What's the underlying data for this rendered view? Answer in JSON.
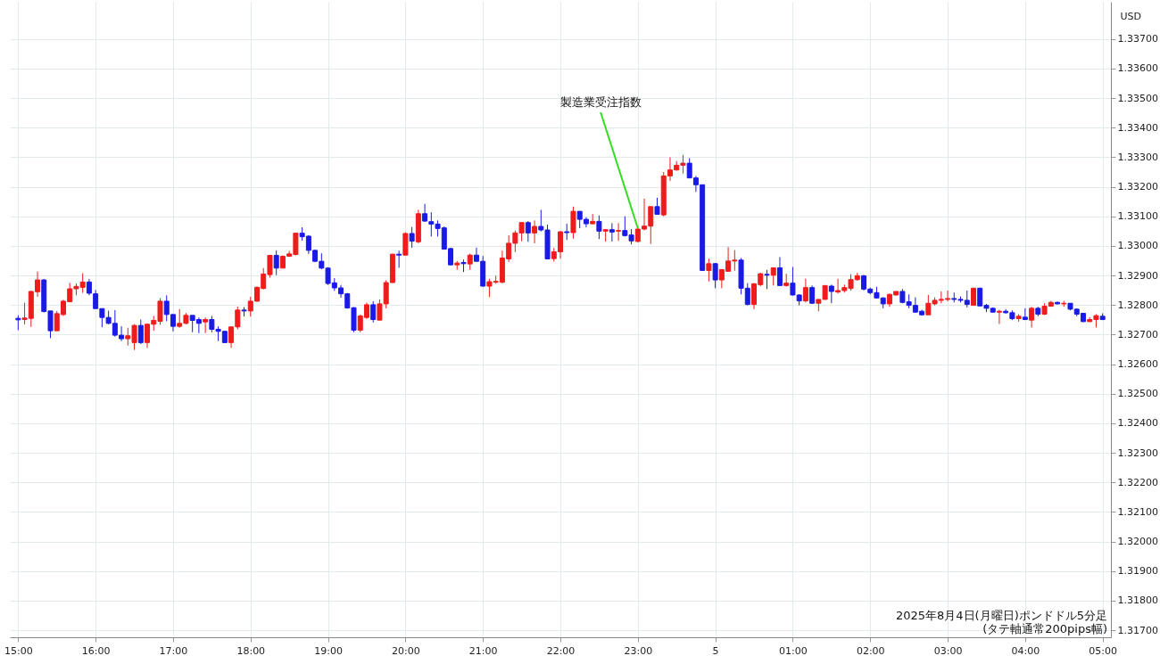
{
  "chart_data": {
    "type": "candlestick",
    "ylabel": "USD",
    "annotations": [
      {
        "text": "製造業受注指数",
        "x": "2025-08-04T23:00",
        "y": 1.3306
      },
      "2025年8月4日(月曜日)ポンドドル5分足",
      "(タテ軸通常200pips幅)"
    ],
    "x": [
      "2025-08-04T15:00",
      "2025-08-04T15:05",
      "2025-08-04T15:10",
      "2025-08-04T15:15",
      "2025-08-04T15:20",
      "2025-08-04T15:25",
      "2025-08-04T15:30",
      "2025-08-04T15:35",
      "2025-08-04T15:40",
      "2025-08-04T15:45",
      "2025-08-04T15:50",
      "2025-08-04T15:55",
      "2025-08-04T16:00",
      "2025-08-04T16:05",
      "2025-08-04T16:10",
      "2025-08-04T16:15",
      "2025-08-04T16:20",
      "2025-08-04T16:25",
      "2025-08-04T16:30",
      "2025-08-04T16:35",
      "2025-08-04T16:40",
      "2025-08-04T16:45",
      "2025-08-04T16:50",
      "2025-08-04T16:55",
      "2025-08-04T17:00",
      "2025-08-04T17:05",
      "2025-08-04T17:10",
      "2025-08-04T17:15",
      "2025-08-04T17:20",
      "2025-08-04T17:25",
      "2025-08-04T17:30",
      "2025-08-04T17:35",
      "2025-08-04T17:40",
      "2025-08-04T17:45",
      "2025-08-04T17:50",
      "2025-08-04T17:55",
      "2025-08-04T18:00",
      "2025-08-04T18:05",
      "2025-08-04T18:10",
      "2025-08-04T18:15",
      "2025-08-04T18:20",
      "2025-08-04T18:25",
      "2025-08-04T18:30",
      "2025-08-04T18:35",
      "2025-08-04T18:40",
      "2025-08-04T18:45",
      "2025-08-04T18:50",
      "2025-08-04T18:55",
      "2025-08-04T19:00",
      "2025-08-04T19:05",
      "2025-08-04T19:10",
      "2025-08-04T19:15",
      "2025-08-04T19:20",
      "2025-08-04T19:25",
      "2025-08-04T19:30",
      "2025-08-04T19:35",
      "2025-08-04T19:40",
      "2025-08-04T19:45",
      "2025-08-04T19:50",
      "2025-08-04T19:55",
      "2025-08-04T20:00",
      "2025-08-04T20:05",
      "2025-08-04T20:10",
      "2025-08-04T20:15",
      "2025-08-04T20:20",
      "2025-08-04T20:25",
      "2025-08-04T20:30",
      "2025-08-04T20:35",
      "2025-08-04T20:40",
      "2025-08-04T20:45",
      "2025-08-04T20:50",
      "2025-08-04T20:55",
      "2025-08-04T21:00",
      "2025-08-04T21:05",
      "2025-08-04T21:10",
      "2025-08-04T21:15",
      "2025-08-04T21:20",
      "2025-08-04T21:25",
      "2025-08-04T21:30",
      "2025-08-04T21:35",
      "2025-08-04T21:40",
      "2025-08-04T21:45",
      "2025-08-04T21:50",
      "2025-08-04T21:55",
      "2025-08-04T22:00",
      "2025-08-04T22:05",
      "2025-08-04T22:10",
      "2025-08-04T22:15",
      "2025-08-04T22:20",
      "2025-08-04T22:25",
      "2025-08-04T22:30",
      "2025-08-04T22:35",
      "2025-08-04T22:40",
      "2025-08-04T22:45",
      "2025-08-04T22:50",
      "2025-08-04T22:55",
      "2025-08-04T23:00",
      "2025-08-04T23:05",
      "2025-08-04T23:10",
      "2025-08-04T23:15",
      "2025-08-04T23:20",
      "2025-08-04T23:25",
      "2025-08-04T23:30",
      "2025-08-04T23:35",
      "2025-08-04T23:40",
      "2025-08-04T23:45",
      "2025-08-04T23:50",
      "2025-08-04T23:55",
      "2025-08-05T00:00",
      "2025-08-05T00:05",
      "2025-08-05T00:10",
      "2025-08-05T00:15",
      "2025-08-05T00:20",
      "2025-08-05T00:25",
      "2025-08-05T00:30",
      "2025-08-05T00:35",
      "2025-08-05T00:40",
      "2025-08-05T00:45",
      "2025-08-05T00:50",
      "2025-08-05T00:55",
      "2025-08-05T01:00",
      "2025-08-05T01:05",
      "2025-08-05T01:10",
      "2025-08-05T01:15",
      "2025-08-05T01:20",
      "2025-08-05T01:25",
      "2025-08-05T01:30",
      "2025-08-05T01:35",
      "2025-08-05T01:40",
      "2025-08-05T01:45",
      "2025-08-05T01:50",
      "2025-08-05T01:55",
      "2025-08-05T02:00",
      "2025-08-05T02:05",
      "2025-08-05T02:10",
      "2025-08-05T02:15",
      "2025-08-05T02:20",
      "2025-08-05T02:25",
      "2025-08-05T02:30",
      "2025-08-05T02:35",
      "2025-08-05T02:40",
      "2025-08-05T02:45",
      "2025-08-05T02:50",
      "2025-08-05T02:55",
      "2025-08-05T03:00",
      "2025-08-05T03:05",
      "2025-08-05T03:10",
      "2025-08-05T03:15",
      "2025-08-05T03:20",
      "2025-08-05T03:25",
      "2025-08-05T03:30",
      "2025-08-05T03:35",
      "2025-08-05T03:40",
      "2025-08-05T03:45",
      "2025-08-05T03:50",
      "2025-08-05T03:55",
      "2025-08-05T04:00",
      "2025-08-05T04:05",
      "2025-08-05T04:10",
      "2025-08-05T04:15",
      "2025-08-05T04:20",
      "2025-08-05T04:25",
      "2025-08-05T04:30",
      "2025-08-05T04:35",
      "2025-08-05T04:40",
      "2025-08-05T04:45",
      "2025-08-05T04:50",
      "2025-08-05T04:55",
      "2025-08-05T05:00"
    ],
    "ohlc": [
      [
        1.32755,
        1.32765,
        1.32715,
        1.3275
      ],
      [
        1.32751,
        1.32808,
        1.32735,
        1.32756
      ],
      [
        1.32755,
        1.32848,
        1.32726,
        1.32846
      ],
      [
        1.32845,
        1.32913,
        1.32828,
        1.32885
      ],
      [
        1.32885,
        1.32888,
        1.32775,
        1.32778
      ],
      [
        1.3278,
        1.3278,
        1.32688,
        1.32713
      ],
      [
        1.32713,
        1.3278,
        1.32713,
        1.32771
      ],
      [
        1.32768,
        1.32818,
        1.32763,
        1.32813
      ],
      [
        1.32811,
        1.32875,
        1.32811,
        1.32855
      ],
      [
        1.32855,
        1.32873,
        1.32833,
        1.32863
      ],
      [
        1.3286,
        1.32908,
        1.32841,
        1.32878
      ],
      [
        1.32878,
        1.32888,
        1.32833,
        1.3284
      ],
      [
        1.32838,
        1.32851,
        1.32788,
        1.32788
      ],
      [
        1.32788,
        1.32788,
        1.32725,
        1.32758
      ],
      [
        1.32758,
        1.32781,
        1.32735,
        1.32738
      ],
      [
        1.32738,
        1.32783,
        1.32693,
        1.32698
      ],
      [
        1.32698,
        1.32728,
        1.32678,
        1.32686
      ],
      [
        1.32686,
        1.32723,
        1.32663,
        1.32696
      ],
      [
        1.32673,
        1.32735,
        1.32648,
        1.32731
      ],
      [
        1.32731,
        1.32751,
        1.32668,
        1.32673
      ],
      [
        1.32673,
        1.32738,
        1.32655,
        1.32735
      ],
      [
        1.32735,
        1.32763,
        1.32713,
        1.32748
      ],
      [
        1.32745,
        1.32823,
        1.32733,
        1.32813
      ],
      [
        1.32813,
        1.32833,
        1.32745,
        1.32768
      ],
      [
        1.32768,
        1.32768,
        1.32711,
        1.32728
      ],
      [
        1.32728,
        1.32786,
        1.32723,
        1.32738
      ],
      [
        1.32738,
        1.32773,
        1.32735,
        1.32765
      ],
      [
        1.32765,
        1.32765,
        1.32708,
        1.32748
      ],
      [
        1.32751,
        1.32758,
        1.32705,
        1.32738
      ],
      [
        1.32743,
        1.32758,
        1.32705,
        1.32751
      ],
      [
        1.32751,
        1.32763,
        1.32708,
        1.32718
      ],
      [
        1.32718,
        1.32728,
        1.32678,
        1.32711
      ],
      [
        1.32711,
        1.32713,
        1.32671,
        1.32673
      ],
      [
        1.32673,
        1.32728,
        1.32655,
        1.32726
      ],
      [
        1.32726,
        1.32795,
        1.32718,
        1.32783
      ],
      [
        1.32783,
        1.32793,
        1.32761,
        1.3278
      ],
      [
        1.3278,
        1.32828,
        1.32761,
        1.32813
      ],
      [
        1.32813,
        1.32863,
        1.32811,
        1.3286
      ],
      [
        1.32856,
        1.32925,
        1.32853,
        1.32905
      ],
      [
        1.32903,
        1.3297,
        1.32893,
        1.32968
      ],
      [
        1.32968,
        1.32985,
        1.32901,
        1.32925
      ],
      [
        1.32925,
        1.32968,
        1.32925,
        1.32965
      ],
      [
        1.32965,
        1.32983,
        1.32963,
        1.32973
      ],
      [
        1.32971,
        1.33045,
        1.32968,
        1.33043
      ],
      [
        1.33043,
        1.33063,
        1.33018,
        1.33031
      ],
      [
        1.33033,
        1.33036,
        1.32973,
        1.32985
      ],
      [
        1.32985,
        1.32988,
        1.32945,
        1.32948
      ],
      [
        1.32948,
        1.32975,
        1.32921,
        1.32925
      ],
      [
        1.32925,
        1.32928,
        1.32868,
        1.32873
      ],
      [
        1.32875,
        1.32891,
        1.32848,
        1.32858
      ],
      [
        1.32858,
        1.32868,
        1.32825,
        1.32838
      ],
      [
        1.32838,
        1.32841,
        1.32788,
        1.3279
      ],
      [
        1.32791,
        1.32793,
        1.32708,
        1.32715
      ],
      [
        1.32715,
        1.32768,
        1.32708,
        1.32763
      ],
      [
        1.32758,
        1.32808,
        1.32753,
        1.32801
      ],
      [
        1.32801,
        1.32813,
        1.32741,
        1.32751
      ],
      [
        1.32749,
        1.32819,
        1.32749,
        1.32804
      ],
      [
        1.32804,
        1.32884,
        1.32789,
        1.32876
      ],
      [
        1.32876,
        1.32974,
        1.32876,
        1.32972
      ],
      [
        1.32972,
        1.32984,
        1.32926,
        1.32969
      ],
      [
        1.32969,
        1.33046,
        1.32969,
        1.33042
      ],
      [
        1.33042,
        1.33064,
        1.32994,
        1.33016
      ],
      [
        1.33014,
        1.33122,
        1.33009,
        1.33109
      ],
      [
        1.33109,
        1.33142,
        1.33082,
        1.33084
      ],
      [
        1.33082,
        1.33114,
        1.33032,
        1.33074
      ],
      [
        1.33074,
        1.33086,
        1.33032,
        1.33059
      ],
      [
        1.33061,
        1.33066,
        1.32989,
        1.32989
      ],
      [
        1.32991,
        1.32994,
        1.32934,
        1.32936
      ],
      [
        1.32936,
        1.32949,
        1.32919,
        1.32942
      ],
      [
        1.32944,
        1.32954,
        1.32912,
        1.3294
      ],
      [
        1.32939,
        1.32974,
        1.32919,
        1.32969
      ],
      [
        1.32969,
        1.32994,
        1.32946,
        1.32948
      ],
      [
        1.32948,
        1.32966,
        1.32862,
        1.32864
      ],
      [
        1.32864,
        1.32889,
        1.32827,
        1.32879
      ],
      [
        1.32877,
        1.32899,
        1.32872,
        1.3288
      ],
      [
        1.32877,
        1.32984,
        1.32874,
        1.32959
      ],
      [
        1.32956,
        1.33036,
        1.32946,
        1.33009
      ],
      [
        1.33009,
        1.33052,
        1.32979,
        1.33044
      ],
      [
        1.33044,
        1.33079,
        1.33016,
        1.33079
      ],
      [
        1.33079,
        1.33084,
        1.33014,
        1.33044
      ],
      [
        1.33044,
        1.33086,
        1.33009,
        1.33066
      ],
      [
        1.33066,
        1.33122,
        1.33049,
        1.33054
      ],
      [
        1.33054,
        1.33072,
        1.32956,
        1.32956
      ],
      [
        1.32957,
        1.32993,
        1.32947,
        1.3298
      ],
      [
        1.3298,
        1.3305,
        1.32957,
        1.33048
      ],
      [
        1.33048,
        1.33075,
        1.3302,
        1.33045
      ],
      [
        1.33045,
        1.33133,
        1.33025,
        1.33117
      ],
      [
        1.33117,
        1.33117,
        1.3306,
        1.3309
      ],
      [
        1.3309,
        1.33097,
        1.33063,
        1.33075
      ],
      [
        1.33075,
        1.33108,
        1.33073,
        1.33083
      ],
      [
        1.33083,
        1.33103,
        1.33023,
        1.3305
      ],
      [
        1.3305,
        1.33057,
        1.33015,
        1.33055
      ],
      [
        1.33055,
        1.33077,
        1.33015,
        1.33047
      ],
      [
        1.3305,
        1.33077,
        1.33017,
        1.33052
      ],
      [
        1.33052,
        1.331,
        1.33032,
        1.33035
      ],
      [
        1.33037,
        1.33057,
        1.33005,
        1.33017
      ],
      [
        1.33015,
        1.33067,
        1.33013,
        1.33057
      ],
      [
        1.33057,
        1.3316,
        1.33053,
        1.33067
      ],
      [
        1.33067,
        1.33133,
        1.33007,
        1.33133
      ],
      [
        1.33133,
        1.33163,
        1.33107,
        1.33107
      ],
      [
        1.33105,
        1.3325,
        1.331,
        1.33237
      ],
      [
        1.33237,
        1.333,
        1.3322,
        1.33257
      ],
      [
        1.33257,
        1.33287,
        1.33255,
        1.33273
      ],
      [
        1.33273,
        1.33308,
        1.33245,
        1.3328
      ],
      [
        1.3328,
        1.33297,
        1.3323,
        1.3323
      ],
      [
        1.3323,
        1.33237,
        1.33183,
        1.33207
      ],
      [
        1.33207,
        1.33207,
        1.32917,
        1.32917
      ],
      [
        1.32917,
        1.32957,
        1.3288,
        1.3294
      ],
      [
        1.3294,
        1.32942,
        1.32857,
        1.32885
      ],
      [
        1.32885,
        1.32922,
        1.32857,
        1.3292
      ],
      [
        1.32914,
        1.32996,
        1.32914,
        1.32949
      ],
      [
        1.32949,
        1.32986,
        1.32916,
        1.32952
      ],
      [
        1.32952,
        1.32959,
        1.32836,
        1.32857
      ],
      [
        1.32857,
        1.32874,
        1.32799,
        1.32802
      ],
      [
        1.32802,
        1.32874,
        1.32786,
        1.32872
      ],
      [
        1.32869,
        1.32909,
        1.32864,
        1.32906
      ],
      [
        1.32904,
        1.32919,
        1.32854,
        1.32901
      ],
      [
        1.32901,
        1.32926,
        1.32866,
        1.32926
      ],
      [
        1.32926,
        1.32962,
        1.32864,
        1.32866
      ],
      [
        1.32866,
        1.32906,
        1.32862,
        1.32874
      ],
      [
        1.32874,
        1.32929,
        1.32832,
        1.32834
      ],
      [
        1.32834,
        1.32836,
        1.32799,
        1.32814
      ],
      [
        1.32814,
        1.32889,
        1.32809,
        1.32859
      ],
      [
        1.32859,
        1.32866,
        1.32804,
        1.32806
      ],
      [
        1.32806,
        1.32819,
        1.32779,
        1.32819
      ],
      [
        1.32819,
        1.32866,
        1.32819,
        1.32866
      ],
      [
        1.32864,
        1.32869,
        1.32806,
        1.32846
      ],
      [
        1.32844,
        1.32889,
        1.32839,
        1.32849
      ],
      [
        1.32849,
        1.32869,
        1.32842,
        1.32859
      ],
      [
        1.32856,
        1.32904,
        1.32849,
        1.32886
      ],
      [
        1.32886,
        1.32909,
        1.32882,
        1.32899
      ],
      [
        1.32899,
        1.32902,
        1.32849,
        1.32854
      ],
      [
        1.32854,
        1.32859,
        1.32836,
        1.32842
      ],
      [
        1.32842,
        1.32862,
        1.32822,
        1.32824
      ],
      [
        1.32824,
        1.32826,
        1.32789,
        1.32804
      ],
      [
        1.32804,
        1.32839,
        1.32794,
        1.32836
      ],
      [
        1.32834,
        1.32846,
        1.32832,
        1.32846
      ],
      [
        1.32846,
        1.32854,
        1.32806,
        1.32809
      ],
      [
        1.32811,
        1.32836,
        1.32789,
        1.32799
      ],
      [
        1.32799,
        1.32826,
        1.32774,
        1.32776
      ],
      [
        1.32779,
        1.32784,
        1.32764,
        1.32767
      ],
      [
        1.32767,
        1.32834,
        1.32767,
        1.32806
      ],
      [
        1.32804,
        1.32826,
        1.32799,
        1.32816
      ],
      [
        1.32816,
        1.32846,
        1.32806,
        1.32819
      ],
      [
        1.32819,
        1.32849,
        1.32812,
        1.32822
      ],
      [
        1.32822,
        1.32842,
        1.32809,
        1.32819
      ],
      [
        1.32819,
        1.32829,
        1.32809,
        1.32816
      ],
      [
        1.32816,
        1.32849,
        1.32792,
        1.32802
      ],
      [
        1.32799,
        1.32859,
        1.32799,
        1.32857
      ],
      [
        1.32857,
        1.32859,
        1.32796,
        1.32797
      ],
      [
        1.32799,
        1.32804,
        1.32776,
        1.32789
      ],
      [
        1.32789,
        1.32792,
        1.32776,
        1.32776
      ],
      [
        1.32776,
        1.32784,
        1.32736,
        1.32779
      ],
      [
        1.32779,
        1.32786,
        1.32771,
        1.32774
      ],
      [
        1.32774,
        1.32782,
        1.32749,
        1.32754
      ],
      [
        1.32754,
        1.32769,
        1.32744,
        1.32762
      ],
      [
        1.32759,
        1.32789,
        1.32749,
        1.32751
      ],
      [
        1.32749,
        1.32794,
        1.32724,
        1.32789
      ],
      [
        1.32789,
        1.32794,
        1.32762,
        1.32769
      ],
      [
        1.32769,
        1.32806,
        1.32766,
        1.32796
      ],
      [
        1.32796,
        1.32814,
        1.32794,
        1.32809
      ],
      [
        1.32809,
        1.32812,
        1.32802,
        1.32804
      ],
      [
        1.32804,
        1.32814,
        1.32794,
        1.32806
      ],
      [
        1.32806,
        1.32806,
        1.32782,
        1.32786
      ],
      [
        1.32786,
        1.32789,
        1.32762,
        1.32769
      ],
      [
        1.32772,
        1.32774,
        1.32742,
        1.32744
      ],
      [
        1.32744,
        1.32759,
        1.32742,
        1.32751
      ],
      [
        1.32751,
        1.32769,
        1.32724,
        1.32764
      ],
      [
        1.32762,
        1.32772,
        1.32749,
        1.32751
      ]
    ],
    "colors": [
      "#1a1ae6",
      "#ee1c1c",
      "#ee1c1c",
      "#ee1c1c",
      "#1a1ae6",
      "#1a1ae6",
      "#ee1c1c",
      "#ee1c1c",
      "#ee1c1c",
      "#ee1c1c",
      "#ee1c1c",
      "#1a1ae6",
      "#1a1ae6",
      "#1a1ae6",
      "#1a1ae6",
      "#1a1ae6",
      "#1a1ae6",
      "#ee1c1c",
      "#ee1c1c",
      "#1a1ae6",
      "#ee1c1c",
      "#ee1c1c",
      "#ee1c1c",
      "#1a1ae6",
      "#1a1ae6",
      "#ee1c1c",
      "#ee1c1c",
      "#1a1ae6",
      "#1a1ae6",
      "#ee1c1c",
      "#1a1ae6",
      "#1a1ae6",
      "#1a1ae6",
      "#ee1c1c",
      "#ee1c1c",
      "#1a1ae6",
      "#ee1c1c",
      "#ee1c1c",
      "#ee1c1c",
      "#ee1c1c",
      "#1a1ae6",
      "#ee1c1c",
      "#ee1c1c",
      "#ee1c1c",
      "#1a1ae6",
      "#1a1ae6",
      "#1a1ae6",
      "#1a1ae6",
      "#1a1ae6",
      "#1a1ae6",
      "#1a1ae6",
      "#1a1ae6",
      "#1a1ae6",
      "#ee1c1c",
      "#ee1c1c",
      "#1a1ae6",
      "#ee1c1c",
      "#ee1c1c",
      "#ee1c1c",
      "#1a1ae6",
      "#ee1c1c",
      "#1a1ae6",
      "#ee1c1c",
      "#1a1ae6",
      "#1a1ae6",
      "#1a1ae6",
      "#1a1ae6",
      "#1a1ae6",
      "#ee1c1c",
      "#1a1ae6",
      "#ee1c1c",
      "#1a1ae6",
      "#1a1ae6",
      "#ee1c1c",
      "#ee1c1c",
      "#ee1c1c",
      "#ee1c1c",
      "#ee1c1c",
      "#ee1c1c",
      "#1a1ae6",
      "#ee1c1c",
      "#1a1ae6",
      "#1a1ae6",
      "#ee1c1c",
      "#ee1c1c",
      "#1a1ae6",
      "#ee1c1c",
      "#1a1ae6",
      "#1a1ae6",
      "#ee1c1c",
      "#1a1ae6",
      "#ee1c1c",
      "#1a1ae6",
      "#ee1c1c",
      "#1a1ae6",
      "#1a1ae6",
      "#ee1c1c",
      "#ee1c1c",
      "#ee1c1c",
      "#1a1ae6",
      "#ee1c1c",
      "#ee1c1c",
      "#ee1c1c",
      "#ee1c1c",
      "#1a1ae6",
      "#1a1ae6",
      "#1a1ae6",
      "#ee1c1c",
      "#1a1ae6",
      "#ee1c1c",
      "#ee1c1c",
      "#ee1c1c",
      "#1a1ae6",
      "#1a1ae6",
      "#ee1c1c",
      "#ee1c1c",
      "#1a1ae6",
      "#ee1c1c",
      "#1a1ae6",
      "#ee1c1c",
      "#1a1ae6",
      "#1a1ae6",
      "#ee1c1c",
      "#1a1ae6",
      "#ee1c1c",
      "#ee1c1c",
      "#1a1ae6",
      "#ee1c1c",
      "#ee1c1c",
      "#ee1c1c",
      "#ee1c1c",
      "#1a1ae6",
      "#1a1ae6",
      "#1a1ae6",
      "#1a1ae6",
      "#ee1c1c",
      "#ee1c1c",
      "#1a1ae6",
      "#1a1ae6",
      "#1a1ae6",
      "#1a1ae6",
      "#ee1c1c",
      "#ee1c1c",
      "#ee1c1c",
      "#ee1c1c",
      "#1a1ae6",
      "#1a1ae6",
      "#1a1ae6",
      "#ee1c1c",
      "#1a1ae6",
      "#1a1ae6",
      "#1a1ae6",
      "#ee1c1c",
      "#1a1ae6",
      "#1a1ae6",
      "#ee1c1c",
      "#1a1ae6",
      "#ee1c1c",
      "#1a1ae6",
      "#ee1c1c",
      "#ee1c1c",
      "#1a1ae6",
      "#ee1c1c",
      "#1a1ae6",
      "#1a1ae6",
      "#1a1ae6",
      "#ee1c1c",
      "#ee1c1c",
      "#1a1ae6"
    ],
    "xlim": [
      "2025-08-04T14:57",
      "2025-08-05T05:03"
    ],
    "xticks": [
      {
        "value": "2025-08-04T15:00",
        "label": "15:00"
      },
      {
        "value": "2025-08-04T16:00",
        "label": "16:00"
      },
      {
        "value": "2025-08-04T17:00",
        "label": "17:00"
      },
      {
        "value": "2025-08-04T18:00",
        "label": "18:00"
      },
      {
        "value": "2025-08-04T19:00",
        "label": "19:00"
      },
      {
        "value": "2025-08-04T20:00",
        "label": "20:00"
      },
      {
        "value": "2025-08-04T21:00",
        "label": "21:00"
      },
      {
        "value": "2025-08-04T22:00",
        "label": "22:00"
      },
      {
        "value": "2025-08-04T23:00",
        "label": "23:00"
      },
      {
        "value": "2025-08-05T00:00",
        "label": "5"
      },
      {
        "value": "2025-08-05T01:00",
        "label": "01:00"
      },
      {
        "value": "2025-08-05T02:00",
        "label": "02:00"
      },
      {
        "value": "2025-08-05T03:00",
        "label": "03:00"
      },
      {
        "value": "2025-08-05T04:00",
        "label": "04:00"
      },
      {
        "value": "2025-08-05T05:00",
        "label": "05:00"
      }
    ],
    "ylim": [
      1.31676,
      1.33826
    ],
    "yticks": [
      {
        "value": 1.317,
        "label": "1.31700"
      },
      {
        "value": 1.318,
        "label": "1.31800"
      },
      {
        "value": 1.319,
        "label": "1.31900"
      },
      {
        "value": 1.32,
        "label": "1.32000"
      },
      {
        "value": 1.321,
        "label": "1.32100"
      },
      {
        "value": 1.322,
        "label": "1.32200"
      },
      {
        "value": 1.323,
        "label": "1.32300"
      },
      {
        "value": 1.324,
        "label": "1.32400"
      },
      {
        "value": 1.325,
        "label": "1.32500"
      },
      {
        "value": 1.326,
        "label": "1.32600"
      },
      {
        "value": 1.327,
        "label": "1.32700"
      },
      {
        "value": 1.328,
        "label": "1.32800"
      },
      {
        "value": 1.329,
        "label": "1.32900"
      },
      {
        "value": 1.33,
        "label": "1.33000"
      },
      {
        "value": 1.331,
        "label": "1.33100"
      },
      {
        "value": 1.332,
        "label": "1.33200"
      },
      {
        "value": 1.333,
        "label": "1.33300"
      },
      {
        "value": 1.334,
        "label": "1.33400"
      },
      {
        "value": 1.335,
        "label": "1.33500"
      },
      {
        "value": 1.336,
        "label": "1.33600"
      },
      {
        "value": 1.337,
        "label": "1.33700"
      }
    ],
    "grid": true
  }
}
